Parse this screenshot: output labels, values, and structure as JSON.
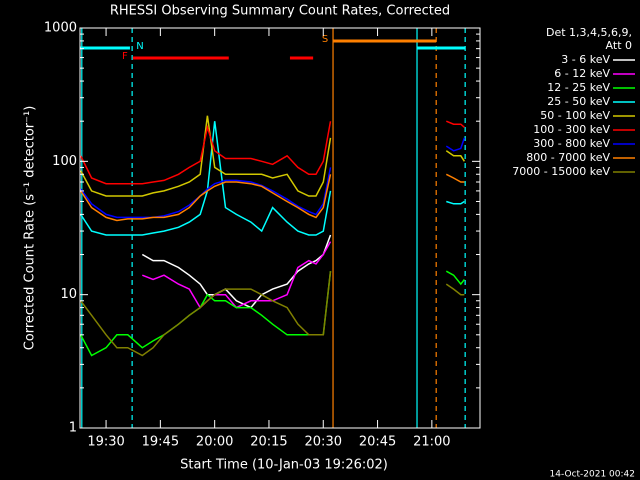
{
  "chart_data": {
    "type": "line",
    "title": "RHESSI Observing Summary Count Rates, Corrected",
    "xlabel": "Start Time (10-Jan-03 19:26:02)",
    "ylabel": "Corrected Count Rate (s⁻¹ detector⁻¹)",
    "legend_title": [
      "Det 1,3,4,5,6,9,",
      "Att 0"
    ],
    "timestamp": "14-Oct-2021 00:42",
    "log_y": true,
    "xlim": [
      22.8,
      133.3
    ],
    "ylim": [
      1,
      1000
    ],
    "xticks": [
      {
        "value": 30,
        "label": "19:30"
      },
      {
        "value": 45,
        "label": "19:45"
      },
      {
        "value": 60,
        "label": "20:00"
      },
      {
        "value": 75,
        "label": "20:15"
      },
      {
        "value": 90,
        "label": "20:30"
      },
      {
        "value": 105,
        "label": "20:45"
      },
      {
        "value": 120,
        "label": "21:00"
      }
    ],
    "yticks": [
      1,
      10,
      100,
      1000
    ],
    "x": [
      23,
      26,
      30,
      33,
      36,
      40,
      43,
      46,
      50,
      53,
      56,
      58,
      60,
      63,
      66,
      70,
      73,
      76,
      80,
      83,
      86,
      88,
      90,
      92,
      110,
      124,
      126,
      128,
      129
    ],
    "series": [
      {
        "name": "3 - 6 keV",
        "color": "#ffffff",
        "values": [
          null,
          null,
          null,
          null,
          null,
          20,
          18,
          18,
          16,
          14,
          12,
          10,
          10,
          11,
          9,
          8,
          10,
          11,
          12,
          15,
          17,
          18,
          20,
          28,
          null,
          null,
          null,
          null,
          null
        ]
      },
      {
        "name": "6 - 12 keV",
        "color": "#ff00ff",
        "values": [
          null,
          null,
          null,
          null,
          null,
          14,
          13,
          14,
          12,
          11,
          8,
          9,
          10,
          10,
          8,
          9,
          9,
          9,
          10,
          16,
          18,
          17,
          20,
          25,
          null,
          null,
          null,
          null,
          null
        ]
      },
      {
        "name": "12 - 25 keV",
        "color": "#00ff00",
        "values": [
          5,
          3.5,
          4,
          5,
          5,
          4,
          4.5,
          5,
          6,
          7,
          8,
          10,
          9,
          9,
          8,
          8,
          7,
          6,
          5,
          5,
          5,
          5,
          5,
          15,
          null,
          15,
          14,
          12,
          13
        ]
      },
      {
        "name": "25 - 50 keV",
        "color": "#00ffff",
        "values": [
          40,
          30,
          28,
          28,
          28,
          28,
          29,
          30,
          32,
          35,
          40,
          60,
          200,
          45,
          40,
          35,
          30,
          45,
          35,
          30,
          28,
          28,
          30,
          60,
          null,
          50,
          48,
          48,
          50
        ]
      },
      {
        "name": "50 - 100 keV",
        "color": "#d2c800",
        "values": [
          85,
          60,
          55,
          55,
          55,
          55,
          58,
          60,
          65,
          70,
          80,
          220,
          90,
          80,
          80,
          80,
          80,
          75,
          80,
          60,
          55,
          55,
          70,
          150,
          null,
          120,
          110,
          110,
          100
        ]
      },
      {
        "name": "100 - 300 keV",
        "color": "#ff0000",
        "values": [
          110,
          75,
          68,
          68,
          68,
          68,
          70,
          72,
          80,
          90,
          100,
          180,
          120,
          105,
          105,
          105,
          100,
          95,
          110,
          90,
          80,
          80,
          100,
          200,
          null,
          200,
          190,
          190,
          180
        ]
      },
      {
        "name": "300 - 800 keV",
        "color": "#0000ff",
        "values": [
          62,
          48,
          40,
          38,
          38,
          38,
          38,
          39,
          42,
          47,
          55,
          62,
          68,
          72,
          72,
          70,
          66,
          60,
          52,
          46,
          42,
          40,
          48,
          90,
          null,
          130,
          120,
          125,
          150
        ]
      },
      {
        "name": "800 - 7000 keV",
        "color": "#ff8000",
        "values": [
          60,
          45,
          38,
          36,
          37,
          37,
          38,
          38,
          40,
          45,
          55,
          60,
          65,
          70,
          70,
          68,
          65,
          58,
          50,
          45,
          40,
          38,
          45,
          80,
          null,
          80,
          75,
          70,
          70
        ]
      },
      {
        "name": "7000 - 15000 keV",
        "color": "#808000",
        "values": [
          9,
          7,
          5,
          4,
          4,
          3.5,
          4,
          5,
          6,
          7,
          8,
          9,
          10,
          11,
          11,
          11,
          10,
          9,
          8,
          6,
          5,
          5,
          5,
          15,
          null,
          12,
          11,
          10,
          10
        ]
      }
    ],
    "flags": [
      {
        "label": "N",
        "color": "#00ffff",
        "start": 22.8,
        "end": 36.6,
        "level": 48
      },
      {
        "label": "S",
        "color": "#ff8000",
        "start": 92.7,
        "end": 121.2,
        "level": 41
      },
      {
        "label": "F",
        "color": "#ff0000",
        "start": 37.4,
        "end": 63.9,
        "level": 58
      }
    ],
    "flag_segments": [
      {
        "color": "#00ffff",
        "start": 115.9,
        "end": 129.2,
        "level": 48
      },
      {
        "color": "#ff0000",
        "start": 80.8,
        "end": 87.2,
        "level": 58
      }
    ],
    "markers": [
      {
        "x": 23.3,
        "color": "#00ffff",
        "dashed": false
      },
      {
        "x": 37.2,
        "color": "#00ffff",
        "dashed": true
      },
      {
        "x": 92.7,
        "color": "#ff8000",
        "dashed": false
      },
      {
        "x": 115.9,
        "color": "#00ffff",
        "dashed": false
      },
      {
        "x": 121.2,
        "color": "#ff8000",
        "dashed": true
      },
      {
        "x": 129.2,
        "color": "#00ffff",
        "dashed": true
      }
    ]
  }
}
